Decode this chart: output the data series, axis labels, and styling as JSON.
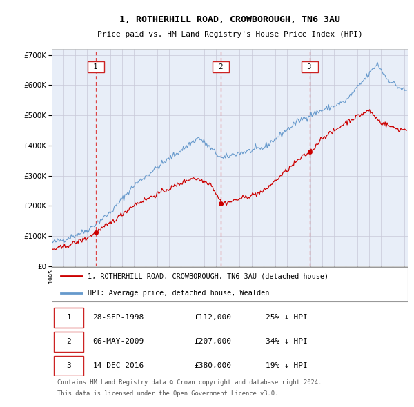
{
  "title": "1, ROTHERHILL ROAD, CROWBOROUGH, TN6 3AU",
  "subtitle": "Price paid vs. HM Land Registry's House Price Index (HPI)",
  "property_label": "1, ROTHERHILL ROAD, CROWBOROUGH, TN6 3AU (detached house)",
  "hpi_label": "HPI: Average price, detached house, Wealden",
  "footer_line1": "Contains HM Land Registry data © Crown copyright and database right 2024.",
  "footer_line2": "This data is licensed under the Open Government Licence v3.0.",
  "sales": [
    {
      "num": 1,
      "date": "28-SEP-1998",
      "price": 112000,
      "pct": "25%",
      "dir": "↓",
      "year": 1998.75
    },
    {
      "num": 2,
      "date": "06-MAY-2009",
      "price": 207000,
      "pct": "34%",
      "dir": "↓",
      "year": 2009.38
    },
    {
      "num": 3,
      "date": "14-DEC-2016",
      "price": 380000,
      "pct": "19%",
      "dir": "↓",
      "year": 2016.95
    }
  ],
  "ylim": [
    0,
    720000
  ],
  "yticks": [
    0,
    100000,
    200000,
    300000,
    400000,
    500000,
    600000,
    700000
  ],
  "background_color": "#e8eef8",
  "grid_color": "#c8c8d8",
  "red_line_color": "#cc0000",
  "blue_line_color": "#6699cc",
  "sale_marker_color": "#cc0000",
  "dashed_line_color": "#dd4444",
  "label_box_color": "#cc2222",
  "xlim_left": 1995.0,
  "xlim_right": 2025.3
}
